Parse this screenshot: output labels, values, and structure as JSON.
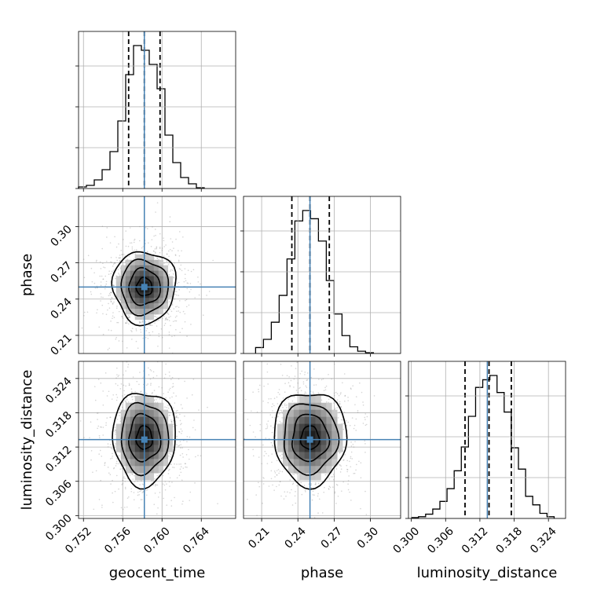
{
  "chart_data": {
    "type": "corner",
    "parameters": [
      "geocent_time",
      "phase",
      "luminosity_distance"
    ],
    "truths": {
      "geocent_time": 0.7582,
      "phase": 0.25,
      "luminosity_distance": 0.3133
    },
    "colors": {
      "truth": "#4682b4",
      "hist": "#000000",
      "grid": "#b0b0b0",
      "samples": "#888888"
    },
    "grid": true,
    "panels": [
      {
        "kind": "hist",
        "param": "geocent_time",
        "range": [
          0.7515,
          0.7675
        ],
        "xticks": [
          "0.752",
          "0.756",
          "0.760",
          "0.764"
        ],
        "xtick_values": [
          0.752,
          0.756,
          0.76,
          0.764
        ],
        "bins": [
          0.7515,
          0.7523,
          0.7531,
          0.7539,
          0.7547,
          0.7555,
          0.7563,
          0.7571,
          0.7579,
          0.7587,
          0.7595,
          0.7603,
          0.7611,
          0.7619,
          0.7627,
          0.7635,
          0.7643
        ],
        "values": [
          2,
          4,
          11,
          24,
          47,
          86,
          145,
          182,
          176,
          158,
          127,
          68,
          33,
          14,
          6,
          1
        ],
        "quantiles": [
          0.7566,
          0.7582,
          0.7598
        ],
        "truth": 0.7582
      },
      {
        "kind": "hist",
        "param": "phase",
        "range": [
          0.195,
          0.325
        ],
        "xticks": [
          "0.21",
          "0.24",
          "0.27",
          "0.30"
        ],
        "xtick_values": [
          0.21,
          0.24,
          0.27,
          0.3
        ],
        "bins": [
          0.205,
          0.2115,
          0.218,
          0.2245,
          0.231,
          0.2375,
          0.244,
          0.2505,
          0.257,
          0.2635,
          0.27,
          0.2765,
          0.283,
          0.2895,
          0.296,
          0.3025
        ],
        "values": [
          8,
          19,
          42,
          78,
          127,
          178,
          192,
          181,
          151,
          98,
          53,
          24,
          9,
          3,
          1
        ],
        "quantiles": [
          0.235,
          0.25,
          0.266
        ],
        "truth": 0.25
      },
      {
        "kind": "hist",
        "param": "luminosity_distance",
        "range": [
          0.2995,
          0.327
        ],
        "xticks": [
          "0.300",
          "0.306",
          "0.312",
          "0.318",
          "0.324"
        ],
        "xtick_values": [
          0.3,
          0.306,
          0.312,
          0.318,
          0.324
        ],
        "bins": [
          0.3,
          0.30125,
          0.3025,
          0.30375,
          0.305,
          0.30625,
          0.3075,
          0.30875,
          0.31,
          0.31125,
          0.3125,
          0.31375,
          0.315,
          0.31625,
          0.3175,
          0.31875,
          0.32,
          0.32125,
          0.3225,
          0.32375,
          0.325
        ],
        "values": [
          1,
          2,
          5,
          11,
          20,
          35,
          56,
          84,
          120,
          154,
          163,
          168,
          148,
          125,
          83,
          58,
          26,
          16,
          6,
          2
        ],
        "quantiles": [
          0.3094,
          0.3136,
          0.3175
        ],
        "truth": 0.3133
      },
      {
        "kind": "2d",
        "x": "geocent_time",
        "y": "phase",
        "xrange": [
          0.7515,
          0.7675
        ],
        "yrange": [
          0.195,
          0.325
        ],
        "yticks": [
          "0.21",
          "0.24",
          "0.27",
          "0.30"
        ],
        "ytick_values": [
          0.21,
          0.24,
          0.27,
          0.3
        ],
        "center": [
          0.7582,
          0.25
        ],
        "sigma": [
          0.0016,
          0.015
        ],
        "corr": 0.0,
        "truth": [
          0.7582,
          0.25
        ]
      },
      {
        "kind": "2d",
        "x": "geocent_time",
        "y": "luminosity_distance",
        "xrange": [
          0.7515,
          0.7675
        ],
        "yrange": [
          0.2995,
          0.327
        ],
        "yticks": [
          "0.300",
          "0.306",
          "0.312",
          "0.318",
          "0.324"
        ],
        "ytick_values": [
          0.3,
          0.306,
          0.312,
          0.318,
          0.324
        ],
        "center": [
          0.7582,
          0.3136
        ],
        "sigma": [
          0.0016,
          0.0041
        ],
        "corr": 0.0,
        "truth": [
          0.7582,
          0.3133
        ]
      },
      {
        "kind": "2d",
        "x": "phase",
        "y": "luminosity_distance",
        "xrange": [
          0.195,
          0.325
        ],
        "yrange": [
          0.2995,
          0.327
        ],
        "center": [
          0.25,
          0.3136
        ],
        "sigma": [
          0.015,
          0.0041
        ],
        "corr": 0.0,
        "truth": [
          0.25,
          0.3133
        ]
      }
    ],
    "labels": {
      "x": [
        "geocent_time",
        "phase",
        "luminosity_distance"
      ],
      "y": [
        "phase",
        "luminosity_distance"
      ]
    }
  }
}
